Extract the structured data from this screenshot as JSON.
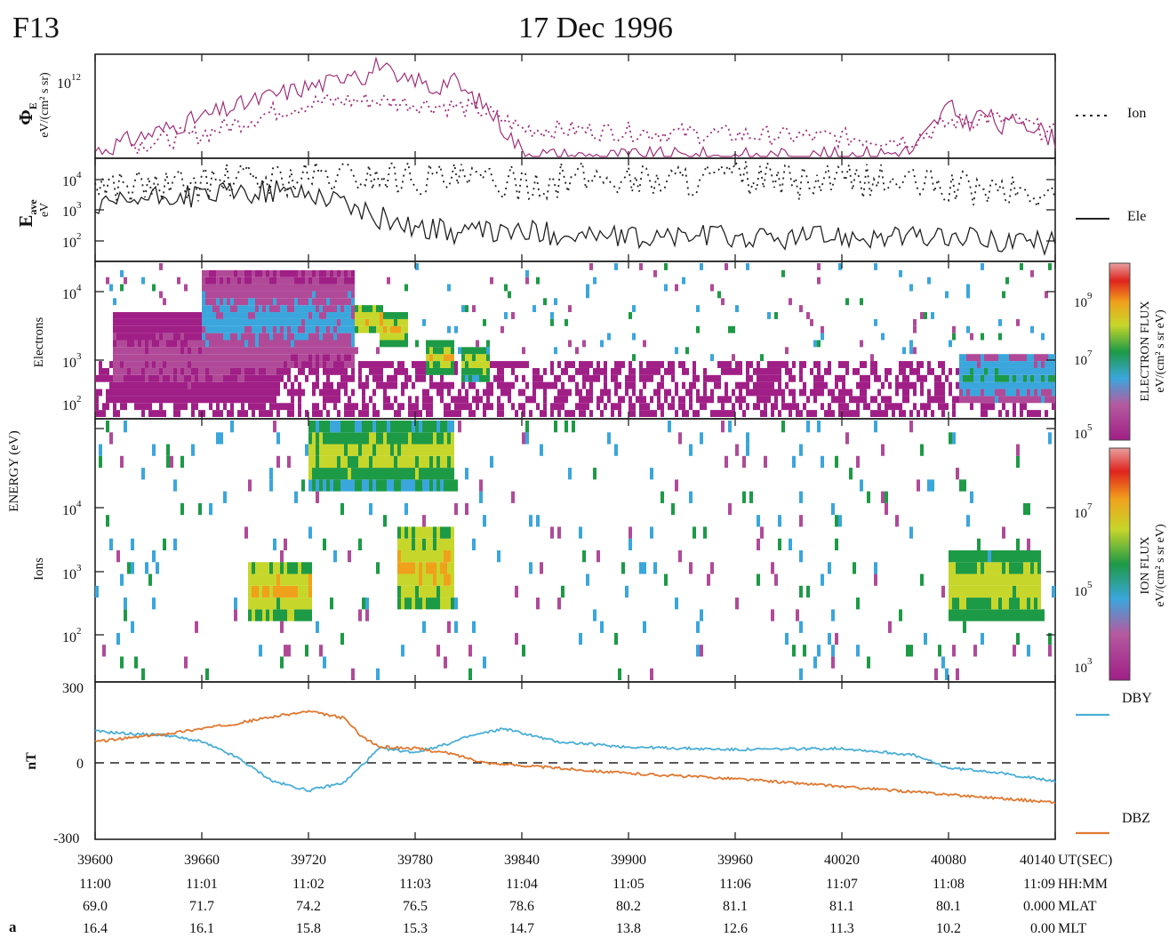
{
  "header": {
    "satellite": "F13",
    "date": "17 Dec 1996",
    "panel_letter": "a"
  },
  "chart_data": {
    "type": "multi-panel",
    "x_axis": {
      "range": [
        39600,
        40140
      ],
      "ut_sec": [
        "39600",
        "39660",
        "39720",
        "39780",
        "39840",
        "39900",
        "39960",
        "40020",
        "40080",
        "40140"
      ],
      "hhmm": [
        "11:00",
        "11:01",
        "11:02",
        "11:03",
        "11:04",
        "11:05",
        "11:06",
        "11:07",
        "11:08",
        "11:09"
      ],
      "mlat": [
        "69.0",
        "71.7",
        "74.2",
        "76.5",
        "78.6",
        "80.2",
        "81.1",
        "81.1",
        "80.1",
        "0.000"
      ],
      "mlt": [
        "16.4",
        "16.1",
        "15.8",
        "15.3",
        "14.7",
        "13.8",
        "12.6",
        "11.3",
        "10.2",
        "0.00"
      ],
      "row_labels": [
        "UT(SEC)",
        "HH:MM",
        "MLAT",
        "MLT"
      ]
    },
    "panels": [
      {
        "id": "energy_flux",
        "type": "line",
        "ylabel_symbol": "Φ",
        "ylabel_sub": "E",
        "ylabel_unit": "eV/(cm² s sr)",
        "yscale": "log",
        "ytick_base": "10",
        "ytick_exp": "12",
        "legend": "Ion",
        "legend_style": "dotted",
        "color": "#a0307a",
        "series": [
          {
            "name": "Ele",
            "style": "solid",
            "x": [
              39600,
              39620,
              39640,
              39660,
              39680,
              39700,
              39720,
              39735,
              39745,
              39752,
              39760,
              39770,
              39780,
              39790,
              39800,
              39810,
              39820,
              39830,
              39840,
              39860,
              39900,
              39960,
              40020,
              40060,
              40080,
              40090,
              40100,
              40110,
              40120,
              40140
            ],
            "log10": [
              10.6,
              10.8,
              11.0,
              11.2,
              11.4,
              11.6,
              11.75,
              11.85,
              12.1,
              11.9,
              12.2,
              11.8,
              11.9,
              11.7,
              11.9,
              11.6,
              11.4,
              11.0,
              10.6,
              10.5,
              10.5,
              10.5,
              10.5,
              10.6,
              11.4,
              11.1,
              11.3,
              11.0,
              11.2,
              10.8
            ]
          },
          {
            "name": "Ion",
            "style": "dotted",
            "x": [
              39620,
              39660,
              39700,
              39720,
              39740,
              39760,
              39780,
              39800,
              39820,
              39840,
              40060,
              40080,
              40100,
              40120,
              40140
            ],
            "log10": [
              10.7,
              10.9,
              11.3,
              11.45,
              11.5,
              11.5,
              11.45,
              11.4,
              11.3,
              11.0,
              10.8,
              11.1,
              11.2,
              11.1,
              10.9
            ]
          }
        ]
      },
      {
        "id": "avg_energy",
        "type": "line",
        "ylabel_symbol": "E",
        "ylabel_sub": "ave",
        "ylabel_unit": "eV",
        "yscale": "log",
        "ylim": [
          60,
          20000
        ],
        "ytick_base": "10",
        "ytick_exps": [
          "4",
          "3",
          "2"
        ],
        "legend": "Ele",
        "legend_style": "solid",
        "series": [
          {
            "name": "Ele",
            "style": "solid",
            "x": [
              39600,
              39620,
              39640,
              39660,
              39680,
              39700,
              39720,
              39740,
              39750,
              39760,
              39780,
              39800,
              39840,
              39880,
              39900,
              39940,
              39980,
              40020,
              40060,
              40100,
              40140
            ],
            "values": [
              1000,
              1800,
              2300,
              2600,
              2900,
              3200,
              3000,
              1800,
              900,
              700,
              400,
              300,
              300,
              250,
              200,
              250,
              200,
              250,
              220,
              200,
              150
            ]
          },
          {
            "name": "Ion",
            "style": "dotted",
            "x": [
              39600,
              39640,
              39680,
              39720,
              39760,
              39800,
              39840,
              39880,
              39920,
              39960,
              40000,
              40040,
              40080,
              40120,
              40140
            ],
            "values": [
              5000,
              4000,
              6000,
              7000,
              8000,
              6000,
              5000,
              7000,
              6000,
              7000,
              5000,
              6000,
              4000,
              3000,
              2000
            ]
          }
        ]
      },
      {
        "id": "electrons",
        "type": "heatmap",
        "ylabel": "Electrons",
        "yscale": "log",
        "ylim": [
          32,
          30000
        ],
        "ytick_base": "10",
        "ytick_exps": [
          "4",
          "3",
          "2"
        ],
        "colorbar": {
          "label_line1": "ELECTRON FLUX",
          "label_line2": "eV/(cm² s sr eV)",
          "range_log10": [
            4.5,
            10.5
          ],
          "tick_base": "10",
          "tick_exps": [
            "9",
            "7",
            "5"
          ]
        },
        "features": [
          {
            "x": [
              39610,
              39700
            ],
            "energy": [
              60,
              3000
            ],
            "flux_log10": 6.2
          },
          {
            "x": [
              39660,
              39745
            ],
            "energy": [
              300,
              20000
            ],
            "flux_log10": 7.0
          },
          {
            "x": [
              39745,
              39760
            ],
            "energy": [
              1500,
              4000
            ],
            "flux_log10": 9.5
          },
          {
            "x": [
              39760,
              39775
            ],
            "energy": [
              800,
              3000
            ],
            "flux_log10": 9.2
          },
          {
            "x": [
              39785,
              39800
            ],
            "energy": [
              200,
              1000
            ],
            "flux_log10": 9.0
          },
          {
            "x": [
              39805,
              39820
            ],
            "energy": [
              150,
              800
            ],
            "flux_log10": 8.8
          },
          {
            "x": [
              40085,
              40140
            ],
            "energy": [
              60,
              600
            ],
            "flux_log10": 7.5
          }
        ]
      },
      {
        "id": "ions",
        "type": "heatmap",
        "ylabel": "Ions",
        "yscale": "log",
        "ylim": [
          32,
          30000
        ],
        "ytick_base": "10",
        "ytick_exps": [
          "4",
          "3",
          "2"
        ],
        "colorbar": {
          "label_line1": "ION FLUX",
          "label_line2": "eV/(cm² s sr eV)",
          "range_log10": [
            2.5,
            8.5
          ],
          "tick_base": "10",
          "tick_exps": [
            "7",
            "5",
            "3"
          ]
        },
        "features": [
          {
            "x": [
              39685,
              39720
            ],
            "energy": [
              150,
              800
            ],
            "flux_log10": 7.3
          },
          {
            "x": [
              39720,
              39800
            ],
            "energy": [
              5000,
              30000
            ],
            "flux_log10": 6.8
          },
          {
            "x": [
              39770,
              39800
            ],
            "energy": [
              200,
              2000
            ],
            "flux_log10": 7.4
          },
          {
            "x": [
              40080,
              40130
            ],
            "energy": [
              150,
              1000
            ],
            "flux_log10": 7.0
          }
        ]
      },
      {
        "id": "magnetometer",
        "type": "line",
        "ylabel": "nT",
        "ylim": [
          -300,
          300
        ],
        "yticks": [
          "300",
          "0",
          "-300"
        ],
        "shared_ylabel": "ENERGY (eV)",
        "series": [
          {
            "name": "DBY",
            "color": "#4aaed6",
            "x": [
              39600,
              39620,
              39640,
              39660,
              39680,
              39700,
              39720,
              39740,
              39750,
              39760,
              39780,
              39800,
              39810,
              39830,
              39860,
              39900,
              39960,
              40020,
              40060,
              40080,
              40100,
              40140
            ],
            "values": [
              120,
              110,
              105,
              80,
              20,
              -70,
              -105,
              -75,
              -10,
              55,
              40,
              75,
              100,
              130,
              80,
              60,
              50,
              55,
              30,
              -20,
              -30,
              -70
            ]
          },
          {
            "name": "DBZ",
            "color": "#e07830",
            "x": [
              39600,
              39620,
              39640,
              39660,
              39680,
              39700,
              39720,
              39740,
              39750,
              39760,
              39780,
              39800,
              39820,
              39860,
              39900,
              39960,
              40020,
              40080,
              40140
            ],
            "values": [
              80,
              95,
              110,
              130,
              150,
              175,
              195,
              170,
              100,
              60,
              55,
              35,
              0,
              -20,
              -40,
              -60,
              -90,
              -120,
              -150
            ]
          }
        ]
      }
    ]
  }
}
